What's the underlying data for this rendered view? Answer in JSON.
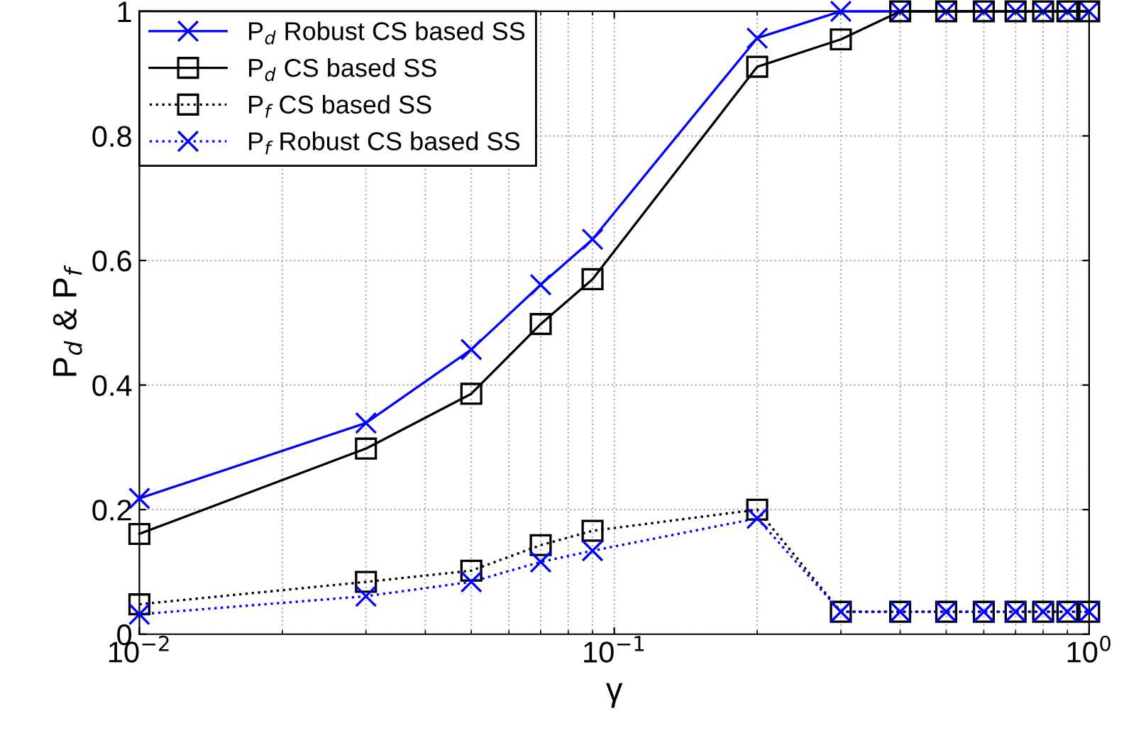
{
  "chart_data": {
    "type": "line",
    "xlabel": "γ",
    "ylabel": "P$_{d}$ & P$_{f}$",
    "log": "x",
    "x": [
      0.01,
      0.03,
      0.05,
      0.07,
      0.09,
      0.2,
      0.3,
      0.4,
      0.5,
      0.6,
      0.7,
      0.8,
      0.9,
      1.0
    ],
    "series": [
      {
        "name": "P$_{d}$ Robust CS based SS",
        "color": "#0000ff",
        "marker": "cross",
        "line_style": "solid",
        "values": [
          0.218,
          0.339,
          0.457,
          0.561,
          0.634,
          0.957,
          1,
          1,
          1,
          1,
          1,
          1,
          1,
          1
        ]
      },
      {
        "name": "P$_{d}$ CS based SS",
        "color": "#000000",
        "marker": "square",
        "line_style": "solid",
        "values": [
          0.161,
          0.298,
          0.386,
          0.498,
          0.57,
          0.911,
          0.955,
          1,
          1,
          1,
          1,
          1,
          1,
          1
        ]
      },
      {
        "name": "P$_{f}$ CS based SS",
        "color": "#000000",
        "marker": "square",
        "line_style": "dotted",
        "values": [
          0.048,
          0.084,
          0.102,
          0.143,
          0.166,
          0.2,
          0.036,
          0.036,
          0.036,
          0.036,
          0.036,
          0.036,
          0.036,
          0.036
        ]
      },
      {
        "name": "P$_{f}$ Robust CS based SS",
        "color": "#0000ff",
        "marker": "cross",
        "line_style": "dotted",
        "values": [
          0.032,
          0.061,
          0.084,
          0.116,
          0.134,
          0.186,
          0.036,
          0.036,
          0.036,
          0.036,
          0.036,
          0.036,
          0.036,
          0.036
        ]
      }
    ],
    "xlim": [
      0.01,
      1
    ],
    "xticks": [
      {
        "value": 0.01,
        "label": "10$^{−2}$"
      },
      {
        "value": 0.1,
        "label": "10$^{−1}$"
      },
      {
        "value": 1,
        "label": "10$^{0}$"
      }
    ],
    "ylim": [
      0,
      1
    ],
    "yticks": [
      0,
      0.2,
      0.4,
      0.6,
      0.8,
      1
    ],
    "grid": true,
    "legend": "top left"
  }
}
